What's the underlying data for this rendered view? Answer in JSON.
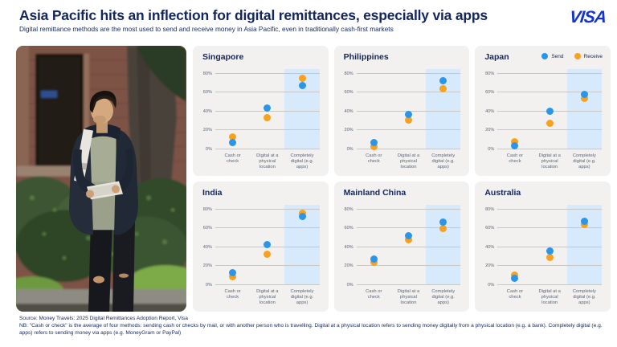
{
  "header": {
    "title": "Asia Pacific hits an inflection for digital remittances, especially via apps",
    "subtitle": "Digital remittance methods are the most used to send and receive money in Asia Pacific, even in traditionally cash-first markets",
    "brand": "VISA"
  },
  "legend": {
    "send_label": "Send",
    "receive_label": "Receive"
  },
  "colors": {
    "send": "#2b95e9",
    "receive": "#f7a11f",
    "highlight_band": "#d7eafb",
    "card_bg": "#f2f1ef",
    "navy": "#15265c",
    "gridline": "#c9c7c4",
    "axis_text": "#5c6578",
    "visa_blue": "#1434cb"
  },
  "photo": {
    "description": "Man standing outdoors in front of a brick building and green hedges, looking down at a tablet"
  },
  "chart_data": {
    "type": "scatter",
    "categories": [
      "Cash or check",
      "Digital at a physical location",
      "Completely digital (e.g. apps)"
    ],
    "category_lines": [
      [
        "Cash or",
        "check"
      ],
      [
        "Digital at a",
        "physical",
        "location"
      ],
      [
        "Completely",
        "digital (e.g.",
        "apps)"
      ]
    ],
    "y_ticks": [
      "0%",
      "20%",
      "40%",
      "60%",
      "80%"
    ],
    "y_tick_values": [
      0,
      20,
      40,
      60,
      80
    ],
    "ylim": [
      0,
      85
    ],
    "grid": true,
    "legend_position": "top-right-of-japan-card",
    "highlight_category_index": 2,
    "series_names": [
      "Send",
      "Receive"
    ],
    "charts": [
      {
        "country": "Singapore",
        "send": [
          7,
          44,
          68
        ],
        "receive": [
          13,
          34,
          75
        ],
        "show_legend": false
      },
      {
        "country": "Philippines",
        "send": [
          7,
          37,
          73
        ],
        "receive": [
          3,
          31,
          64
        ],
        "show_legend": false
      },
      {
        "country": "Japan",
        "send": [
          4,
          40,
          58
        ],
        "receive": [
          8,
          28,
          54
        ],
        "show_legend": true
      },
      {
        "country": "India",
        "send": [
          13,
          43,
          73
        ],
        "receive": [
          9,
          33,
          76
        ],
        "show_legend": false
      },
      {
        "country": "Mainland China",
        "send": [
          28,
          52,
          67
        ],
        "receive": [
          24,
          48,
          60
        ],
        "show_legend": false
      },
      {
        "country": "Australia",
        "send": [
          7,
          36,
          68
        ],
        "receive": [
          11,
          29,
          64
        ],
        "show_legend": false
      }
    ]
  },
  "footer": {
    "line1": "Source: Money Travels: 2025 Digital Remittances Adoption Report, Visa",
    "line2": "NB: \"Cash or check\" is the average of four methods: sending cash or checks by mail, or with another person who is travelling. Digital at a physical location refers to sending money digitally from a physical location (e.g. a bank). Completely digital (e.g. apps) refers to sending money via apps (e.g. MoneyGram or PayPal)"
  }
}
